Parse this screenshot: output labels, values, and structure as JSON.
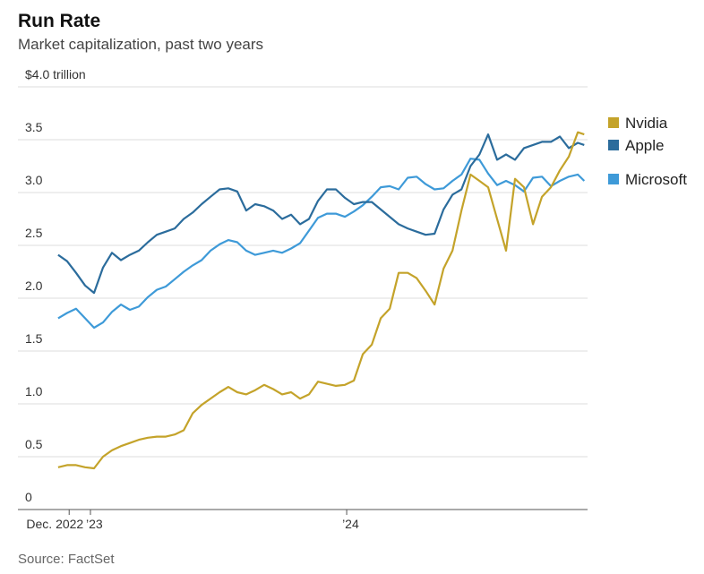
{
  "chart_data": {
    "type": "line",
    "title": "Run Rate",
    "subtitle": "Market capitalization, past two years",
    "source": "Source: FactSet",
    "x": [
      2022.874,
      2022.909,
      2022.944,
      2022.979,
      2023.014,
      2023.049,
      2023.084,
      2023.119,
      2023.154,
      2023.189,
      2023.224,
      2023.259,
      2023.294,
      2023.329,
      2023.364,
      2023.399,
      2023.434,
      2023.469,
      2023.504,
      2023.538,
      2023.573,
      2023.608,
      2023.643,
      2023.678,
      2023.713,
      2023.748,
      2023.783,
      2023.818,
      2023.853,
      2023.888,
      2023.923,
      2023.958,
      2023.993,
      2024.028,
      2024.063,
      2024.098,
      2024.133,
      2024.168,
      2024.203,
      2024.238,
      2024.273,
      2024.308,
      2024.343,
      2024.378,
      2024.413,
      2024.448,
      2024.483,
      2024.518,
      2024.552,
      2024.587,
      2024.622,
      2024.657,
      2024.692,
      2024.727,
      2024.762,
      2024.797,
      2024.832,
      2024.867,
      2024.902,
      2024.927
    ],
    "series": [
      {
        "name": "Nvidia",
        "color": "#c4a32a",
        "values": [
          0.4,
          0.42,
          0.42,
          0.4,
          0.39,
          0.5,
          0.56,
          0.6,
          0.63,
          0.66,
          0.68,
          0.69,
          0.69,
          0.71,
          0.75,
          0.91,
          0.99,
          1.05,
          1.11,
          1.16,
          1.11,
          1.09,
          1.13,
          1.18,
          1.14,
          1.09,
          1.11,
          1.05,
          1.09,
          1.21,
          1.19,
          1.17,
          1.18,
          1.22,
          1.47,
          1.56,
          1.81,
          1.9,
          2.24,
          2.24,
          2.19,
          2.07,
          1.94,
          2.28,
          2.45,
          2.83,
          3.17,
          3.11,
          3.05,
          2.75,
          2.45,
          3.13,
          3.05,
          2.7,
          2.96,
          3.05,
          3.21,
          3.34,
          3.57,
          3.55
        ]
      },
      {
        "name": "Apple",
        "color": "#2b6c9c",
        "values": [
          2.41,
          2.35,
          2.24,
          2.12,
          2.05,
          2.29,
          2.43,
          2.36,
          2.41,
          2.45,
          2.53,
          2.6,
          2.63,
          2.66,
          2.75,
          2.81,
          2.89,
          2.96,
          3.03,
          3.04,
          3.01,
          2.83,
          2.89,
          2.87,
          2.83,
          2.75,
          2.79,
          2.7,
          2.75,
          2.92,
          3.03,
          3.03,
          2.95,
          2.89,
          2.91,
          2.91,
          2.84,
          2.77,
          2.7,
          2.66,
          2.63,
          2.6,
          2.61,
          2.84,
          2.98,
          3.03,
          3.25,
          3.36,
          3.55,
          3.31,
          3.36,
          3.31,
          3.42,
          3.45,
          3.48,
          3.48,
          3.53,
          3.42,
          3.47,
          3.45
        ]
      },
      {
        "name": "Microsoft",
        "color": "#3e9ad8",
        "values": [
          1.81,
          1.86,
          1.9,
          1.81,
          1.72,
          1.77,
          1.87,
          1.94,
          1.89,
          1.92,
          2.01,
          2.08,
          2.11,
          2.18,
          2.25,
          2.31,
          2.36,
          2.45,
          2.51,
          2.55,
          2.53,
          2.45,
          2.41,
          2.43,
          2.45,
          2.43,
          2.47,
          2.52,
          2.64,
          2.76,
          2.8,
          2.8,
          2.77,
          2.82,
          2.88,
          2.96,
          3.05,
          3.06,
          3.03,
          3.14,
          3.15,
          3.08,
          3.03,
          3.04,
          3.11,
          3.17,
          3.32,
          3.31,
          3.18,
          3.07,
          3.11,
          3.07,
          3.01,
          3.14,
          3.15,
          3.06,
          3.11,
          3.15,
          3.17,
          3.11
        ]
      }
    ],
    "xlim": [
      2022.717,
      2024.94
    ],
    "xticks": [
      {
        "value": 2022.917,
        "label": "Dec. 2022"
      },
      {
        "value": 2023.0,
        "label": "’23"
      },
      {
        "value": 2024.0,
        "label": "’24"
      }
    ],
    "ylim": [
      0,
      4
    ],
    "yticks": [
      0,
      0.5,
      {
        "value": 1,
        "label": "1.0"
      },
      1.5,
      {
        "value": 2,
        "label": "2.0"
      },
      2.5,
      {
        "value": 3,
        "label": "3.0"
      },
      3.5,
      {
        "value": 4,
        "label": "$4.0 trillion"
      }
    ],
    "grid": true,
    "legend": "right"
  }
}
